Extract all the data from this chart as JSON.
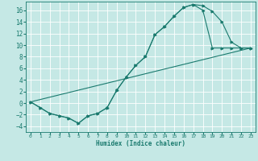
{
  "xlabel": "Humidex (Indice chaleur)",
  "ylabel": "",
  "bg_color": "#c5e8e5",
  "grid_color": "#ffffff",
  "line_color": "#1a7a6e",
  "xlim": [
    -0.5,
    23.5
  ],
  "ylim": [
    -5,
    17.5
  ],
  "xticks": [
    0,
    1,
    2,
    3,
    4,
    5,
    6,
    7,
    8,
    9,
    10,
    11,
    12,
    13,
    14,
    15,
    16,
    17,
    18,
    19,
    20,
    21,
    22,
    23
  ],
  "yticks": [
    -4,
    -2,
    0,
    2,
    4,
    6,
    8,
    10,
    12,
    14,
    16
  ],
  "line1_x": [
    0,
    1,
    2,
    3,
    4,
    5,
    6,
    7,
    8,
    9,
    10,
    11,
    12,
    13,
    14,
    15,
    16,
    17,
    18,
    19,
    20,
    21,
    22,
    23
  ],
  "line1_y": [
    0.2,
    -0.8,
    -1.8,
    -2.2,
    -2.6,
    -3.5,
    -2.2,
    -1.8,
    -0.8,
    2.2,
    4.5,
    6.5,
    8.0,
    11.8,
    13.2,
    15.0,
    16.5,
    17.0,
    16.8,
    15.8,
    14.0,
    10.5,
    9.5,
    9.5
  ],
  "line2_x": [
    0,
    1,
    2,
    3,
    4,
    5,
    6,
    7,
    8,
    9,
    10,
    11,
    12,
    13,
    14,
    15,
    16,
    17,
    18,
    19,
    20,
    21,
    22,
    23
  ],
  "line2_y": [
    0.2,
    -0.8,
    -1.8,
    -2.2,
    -2.6,
    -3.5,
    -2.2,
    -1.8,
    -0.8,
    2.2,
    4.5,
    6.5,
    8.0,
    11.8,
    13.2,
    15.0,
    16.5,
    17.0,
    16.0,
    9.5,
    9.5,
    9.5,
    9.5,
    9.5
  ],
  "line3_x": [
    0,
    23
  ],
  "line3_y": [
    0.2,
    9.5
  ]
}
